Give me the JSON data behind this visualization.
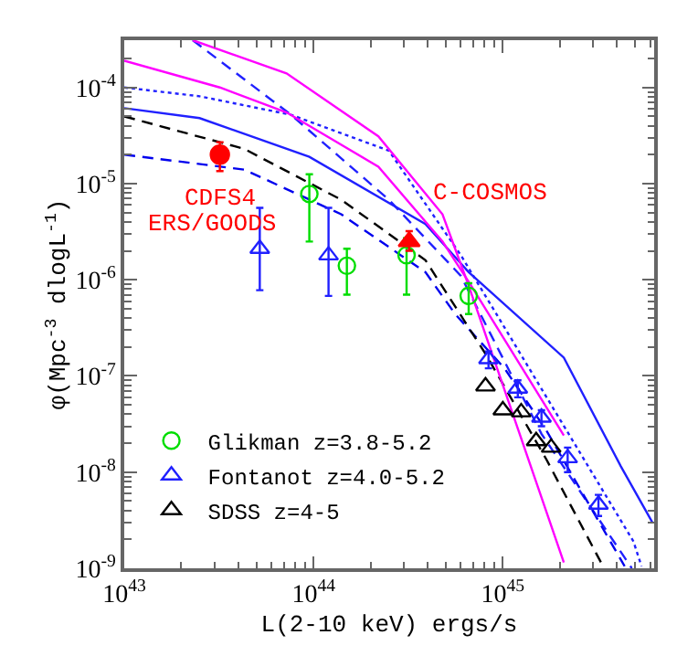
{
  "chart_data": {
    "type": "line",
    "xlabel": "L(2-10 keV) ergs/s",
    "ylabel": "φ(Mpc$^{-3}$ dlogL$^{-1}$)",
    "log": "xy",
    "xlim": [
      1e+43,
      6.3e+45
    ],
    "ylim": [
      1e-09,
      0.00031
    ],
    "xticks": [
      {
        "value": 1e+43,
        "label": "10$^{43}$"
      },
      {
        "value": 1e+44,
        "label": "10$^{44}$"
      },
      {
        "value": 1e+45,
        "label": "10$^{45}$"
      }
    ],
    "yticks": [
      {
        "value": 1e-09,
        "label": "10$^{-9}$"
      },
      {
        "value": 1e-08,
        "label": "10$^{-8}$"
      },
      {
        "value": 1e-07,
        "label": "10$^{-7}$"
      },
      {
        "value": 1e-06,
        "label": "10$^{-6}$"
      },
      {
        "value": 1e-05,
        "label": "10$^{-5}$"
      },
      {
        "value": 0.0001,
        "label": "10$^{-4}$"
      }
    ],
    "legend": "bottom left",
    "series": [
      {
        "color": "#2020ff",
        "line_style": "solid",
        "x": [
          1e+43,
          2.5e+43,
          9.5e+43,
          3.9e+44,
          6.6e+44,
          2.1e+45,
          4.2e+45,
          6.2e+45
        ],
        "values": [
          6.1e-05,
          4.8e-05,
          1.9e-05,
          3.8e-06,
          1.2e-06,
          1.55e-07,
          1.15e-08,
          2.95e-09
        ]
      },
      {
        "color": "#2020ff",
        "line_style": "dotted",
        "x": [
          1e+43,
          2.5e+43,
          7.6e+43,
          2.5e+44,
          6e+44,
          1.02e+45,
          4.9e+45,
          5.4e+45
        ],
        "values": [
          0.0001,
          8.1e-05,
          5.2e-05,
          2.2e-05,
          1.8e-06,
          3.2e-07,
          1.9e-09,
          1.05e-09
        ]
      },
      {
        "color": "#2020ff",
        "line_style": "dashed",
        "x": [
          2.3e+43,
          7.6e+43,
          2.5e+44,
          6e+44,
          1.6e+45,
          4.8e+45
        ],
        "values": [
          0.00031,
          5.2e-05,
          6.8e-06,
          1.1e-06,
          2.5e-08,
          1e-09
        ]
      },
      {
        "color": "#0000ee",
        "line_style": "dashed",
        "x": [
          1e+43,
          4.3e+43,
          1.4e+44,
          3.9e+44,
          5.6e+44,
          1.02e+45,
          1.7e+45,
          4.4e+45
        ],
        "values": [
          2e-05,
          1.4e-05,
          4.8e-06,
          1.2e-06,
          4.4e-07,
          1.2e-07,
          2.7e-08,
          1.05e-09
        ]
      },
      {
        "color": "#000000",
        "line_style": "dashed",
        "x": [
          1e+43,
          4.3e+43,
          1.4e+44,
          3.9e+44,
          8.1e+44,
          1.7e+45,
          3.3e+45
        ],
        "values": [
          5e-05,
          2.3e-05,
          6.8e-06,
          1.6e-06,
          1.7e-07,
          1.35e-08,
          1.15e-09
        ]
      },
      {
        "color": "#ff00ff",
        "line_style": "solid",
        "x": [
          1e+43,
          3.2e+43,
          7.2e+43,
          2.2e+44,
          4.8e+44,
          6.8e+44,
          2.1e+45
        ],
        "values": [
          0.00019,
          0.0001,
          5.5e-05,
          1.5e-05,
          2.5e-06,
          8.7e-07,
          2.4e-08
        ]
      },
      {
        "color": "#ff00ff",
        "line_style": "solid",
        "x": [
          2.3e+43,
          7.2e+43,
          2.2e+44,
          4.8e+44,
          6.6e+44,
          2.1e+45
        ],
        "values": [
          0.00031,
          0.00014,
          3.1e-05,
          4.8e-06,
          8.7e-07,
          1.15e-09
        ]
      },
      {
        "type": "scatter",
        "color": "#00dd00",
        "marker": "circle",
        "name": "Glikman z=3.8-5.2",
        "x": [
          9.5e+43,
          1.5e+44,
          3.1e+44,
          6.6e+44
        ],
        "values": [
          7.8e-06,
          1.4e-06,
          1.8e-06,
          6.8e-07
        ],
        "errors": [
          [
            2.5e-06,
            1.25e-05
          ],
          [
            7e-07,
            2.1e-06
          ],
          [
            7e-07,
            2.7e-06
          ],
          [
            4.4e-07,
            9.2e-07
          ]
        ]
      },
      {
        "type": "scatter",
        "color": "#2020ff",
        "marker": "triangle",
        "name": "Fontanot z=4.0-5.2",
        "x": [
          5.2e+43,
          1.2e+44,
          8.4e+44,
          1.2e+45,
          1.6e+45,
          2.2e+45,
          3.2e+45
        ],
        "values": [
          2.1e-06,
          1.8e-06,
          1.5e-07,
          7.4e-08,
          3.7e-08,
          1.4e-08,
          4.6e-09
        ],
        "errors": [
          [
            7.8e-07,
            5.6e-06
          ],
          [
            6.8e-07,
            5.6e-06
          ],
          [
            1.2e-07,
            1.8e-07
          ],
          [
            6e-08,
            9e-08
          ],
          [
            3e-08,
            4.4e-08
          ],
          [
            1e-08,
            1.8e-08
          ],
          [
            3.5e-09,
            5.8e-09
          ]
        ]
      },
      {
        "type": "scatter",
        "color": "#000000",
        "marker": "triangle",
        "name": "SDSS z=4-5",
        "x": [
          8.1e+44,
          1e+45,
          1.25e+45,
          1.5e+45,
          1.8e+45
        ],
        "values": [
          7.8e-08,
          4.4e-08,
          4.2e-08,
          2.1e-08,
          1.8e-08
        ]
      },
      {
        "type": "scatter",
        "color": "#ff0000",
        "marker": "circle",
        "x": [
          3.2e+43
        ],
        "values": [
          2e-05
        ],
        "errors": [
          [
            1.35e-05,
            2.7e-05
          ]
        ]
      },
      {
        "type": "scatter",
        "color": "#ff0000",
        "marker": "triangle",
        "x": [
          3.2e+44
        ],
        "values": [
          2.5e-06
        ],
        "errors": [
          [
            2e-06,
            3.2e-06
          ]
        ]
      }
    ],
    "annotations": [
      "CDFS4",
      "ERS/GOODS",
      "C-COSMOS"
    ]
  }
}
